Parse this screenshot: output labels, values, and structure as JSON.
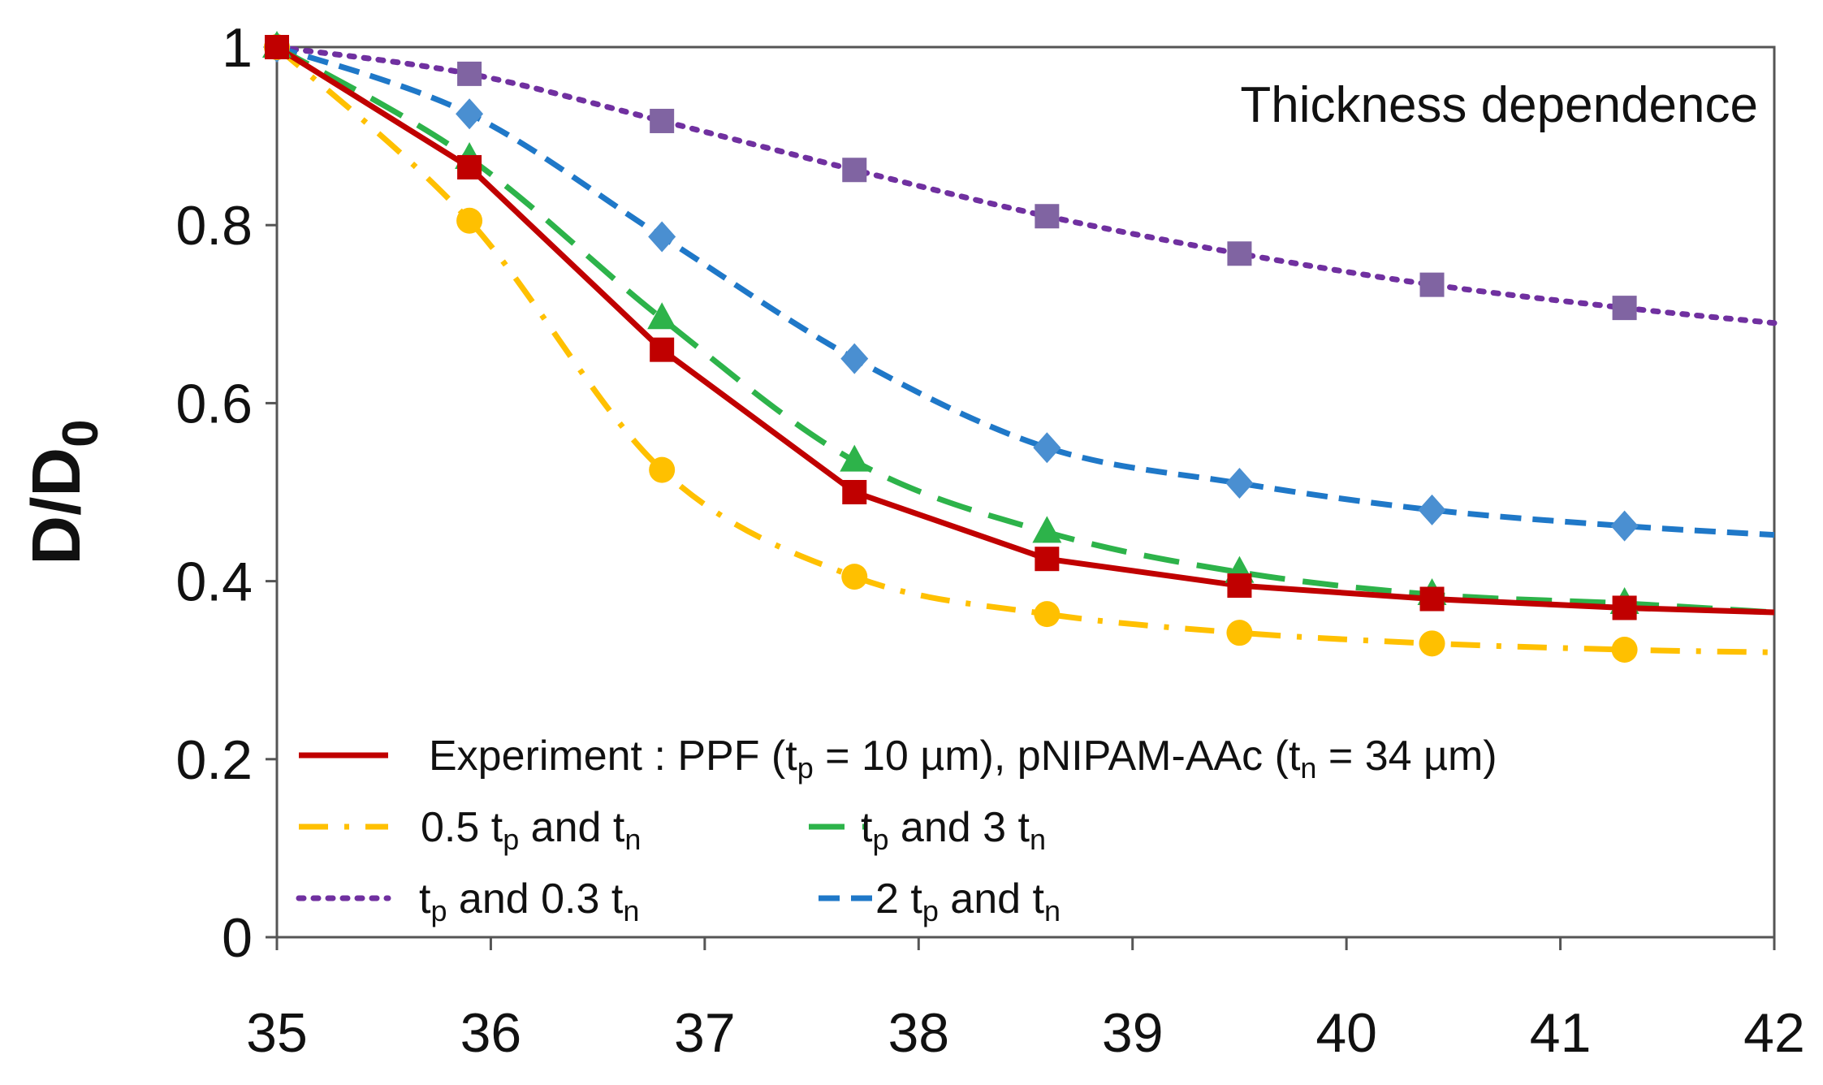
{
  "chart_data": {
    "type": "line",
    "title": "",
    "annotation": "Thickness dependence",
    "xlabel": "",
    "ylabel": "D/D",
    "ylabel_subscript": "0",
    "xlim": [
      35,
      42
    ],
    "ylim": [
      0,
      1
    ],
    "x_ticks": [
      "35",
      "36",
      "37",
      "38",
      "39",
      "40",
      "41",
      "42"
    ],
    "y_ticks": [
      "0",
      "0.2",
      "0.4",
      "0.6",
      "0.8",
      "1"
    ],
    "grid": false,
    "legend_position": "bottom-left",
    "series": [
      {
        "key": "experiment",
        "color": "#c00000",
        "dash": "solid",
        "marker": "square",
        "legend_parts": [
          [
            "Experiment : PPF (t",
            false
          ],
          [
            "p",
            true
          ],
          [
            " = 10 µm), pNIPAM-AAc (t",
            false
          ],
          [
            "n",
            true
          ],
          [
            " = 34 µm)",
            false
          ]
        ],
        "x": [
          35,
          35.9,
          36.8,
          37.7,
          38.6,
          39.5,
          40.4,
          41.3
        ],
        "values": [
          1.0,
          0.865,
          0.66,
          0.5,
          0.425,
          0.395,
          0.38,
          0.37
        ],
        "line_end": [
          42,
          0.365
        ]
      },
      {
        "key": "half-tp",
        "color": "#ffc000",
        "dash": "dash-dot",
        "marker": "circle",
        "legend_parts": [
          [
            "0.5 t",
            false
          ],
          [
            "p",
            true
          ],
          [
            "  and t",
            false
          ],
          [
            "n",
            true
          ]
        ],
        "x": [
          35,
          35.9,
          36.8,
          37.7,
          38.6,
          39.5,
          40.4,
          41.3
        ],
        "values": [
          1.0,
          0.805,
          0.525,
          0.405,
          0.363,
          0.342,
          0.33,
          0.323
        ],
        "line_end": [
          42,
          0.32
        ]
      },
      {
        "key": "triple-tn",
        "color": "#2db34a",
        "dash": "long-dash",
        "marker": "triangle",
        "legend_parts": [
          [
            "t",
            false
          ],
          [
            "p",
            true
          ],
          [
            "  and 3 t",
            false
          ],
          [
            "n",
            true
          ]
        ],
        "x": [
          35,
          35.9,
          36.8,
          37.7,
          38.6,
          39.5,
          40.4,
          41.3
        ],
        "values": [
          1.0,
          0.875,
          0.695,
          0.535,
          0.455,
          0.41,
          0.385,
          0.375
        ],
        "line_end": [
          42,
          0.365
        ]
      },
      {
        "key": "point3-tn",
        "color": "#7030a0",
        "marker_color": "#8064a2",
        "dash": "dotted",
        "marker": "square",
        "legend_parts": [
          [
            "t",
            false
          ],
          [
            "p",
            true
          ],
          [
            "  and 0.3 t",
            false
          ],
          [
            "n",
            true
          ]
        ],
        "x": [
          35,
          35.9,
          36.8,
          37.7,
          38.6,
          39.5,
          40.4,
          41.3
        ],
        "values": [
          1.0,
          0.97,
          0.917,
          0.862,
          0.81,
          0.768,
          0.733,
          0.707
        ],
        "line_end": [
          42,
          0.69
        ]
      },
      {
        "key": "double-tp",
        "color": "#1f78c8",
        "marker_color": "#4a8fd1",
        "dash": "short-dash",
        "marker": "diamond",
        "legend_parts": [
          [
            "2 t",
            false
          ],
          [
            "p",
            true
          ],
          [
            "  and t",
            false
          ],
          [
            "n",
            true
          ]
        ],
        "x": [
          35,
          35.9,
          36.8,
          37.7,
          38.6,
          39.5,
          40.4,
          41.3
        ],
        "values": [
          1.0,
          0.925,
          0.787,
          0.65,
          0.55,
          0.51,
          0.48,
          0.462
        ],
        "line_end": [
          42,
          0.452
        ]
      }
    ]
  }
}
